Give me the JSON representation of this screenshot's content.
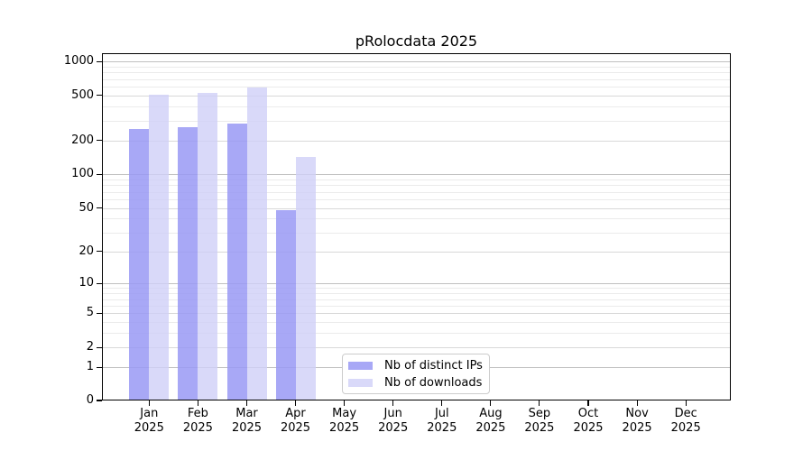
{
  "chart_data": {
    "type": "bar",
    "title": "pRolocdata 2025",
    "y_scale": "log10(1+x)",
    "grid": "on",
    "legend_position": "bottom-center",
    "categories": [
      "Jan",
      "Feb",
      "Mar",
      "Apr",
      "May",
      "Jun",
      "Jul",
      "Aug",
      "Sep",
      "Oct",
      "Nov",
      "Dec"
    ],
    "year_label": "2025",
    "series": [
      {
        "name": "Nb of distinct IPs",
        "color": "#a8a8f6",
        "fill": "rgba(153,153,245,0.85)",
        "values": [
          255,
          262,
          284,
          48,
          null,
          null,
          null,
          null,
          null,
          null,
          null,
          null
        ]
      },
      {
        "name": "Nb of downloads",
        "color": "#d9d9f9",
        "fill": "rgba(208,208,248,0.80)",
        "values": [
          512,
          530,
          585,
          143,
          null,
          null,
          null,
          null,
          null,
          null,
          null,
          null
        ]
      }
    ],
    "y_ticks": [
      0,
      1,
      2,
      5,
      10,
      20,
      50,
      100,
      200,
      500,
      1000
    ],
    "ylim": [
      0,
      1100
    ]
  },
  "colors": {
    "background": "#ffffff",
    "spine": "#000000",
    "text": "#000000",
    "grid_major": "#c0c0c0",
    "grid_labeled": "#d8d8d8",
    "grid_minor": "#ebebeb",
    "legend_border": "#cccccc"
  }
}
